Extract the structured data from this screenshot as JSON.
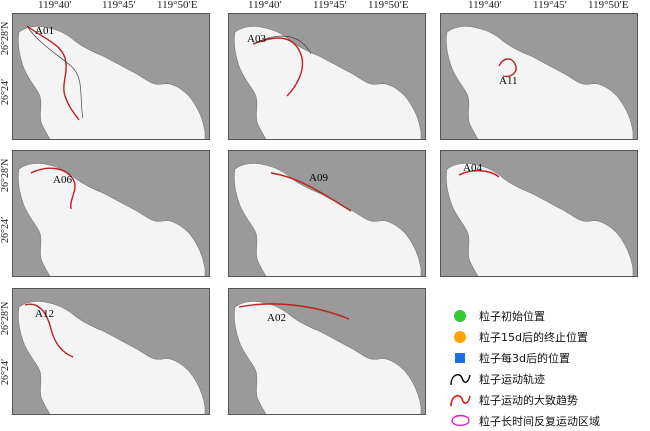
{
  "axes": {
    "top_ticks": [
      "119°40′",
      "119°45′",
      "119°50′E"
    ],
    "left_ticks": [
      "26°28′N",
      "26°24′"
    ]
  },
  "panels": [
    {
      "label": "A01"
    },
    {
      "label": "A03"
    },
    {
      "label": "A11"
    },
    {
      "label": "A06"
    },
    {
      "label": "A09"
    },
    {
      "label": "A04"
    },
    {
      "label": "A12"
    },
    {
      "label": "A02"
    }
  ],
  "legend": {
    "items": [
      {
        "symbol": "green-circle",
        "color": "#33cc33",
        "label": "粒子初始位置"
      },
      {
        "symbol": "orange-circle",
        "color": "#ffa500",
        "label": "粒子15d后的终止位置"
      },
      {
        "symbol": "blue-square",
        "color": "#1e6fe6",
        "label": "粒子每3d后的位置"
      },
      {
        "symbol": "black-track",
        "color": "#000000",
        "label": "粒子运动轨迹"
      },
      {
        "symbol": "red-trend",
        "color": "#d42020",
        "label": "粒子运动的大致趋势"
      },
      {
        "symbol": "magenta-region",
        "color": "#e020c0",
        "label": "粒子长时间反复运动区域"
      }
    ]
  }
}
